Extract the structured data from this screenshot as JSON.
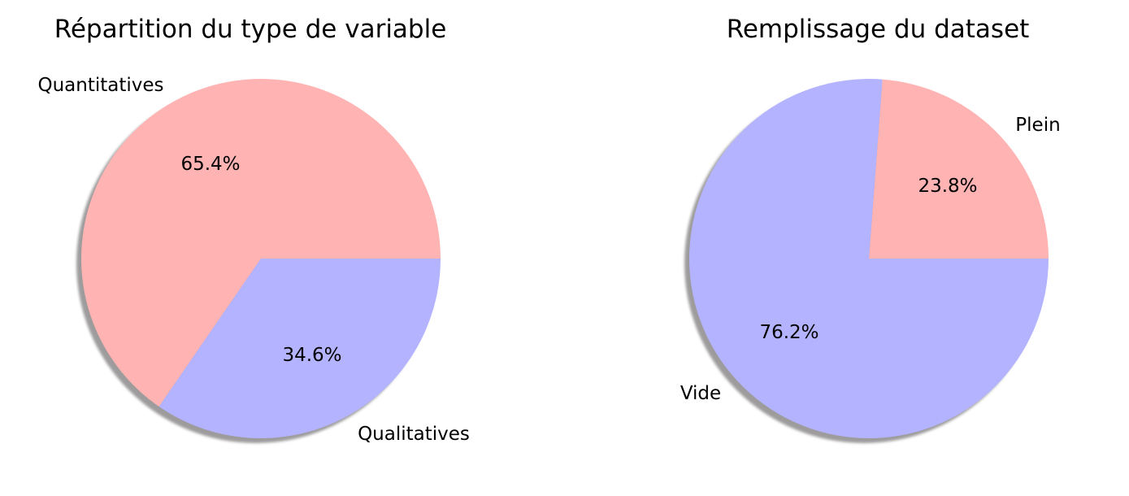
{
  "chart_data": [
    {
      "type": "pie",
      "title": "Répartition du type de variable",
      "labels": [
        "Quantitatives",
        "Qualitatives"
      ],
      "values": [
        65.4,
        34.6
      ],
      "percent_labels": [
        "65.4%",
        "34.6%"
      ],
      "colors": [
        "#ffb3b3",
        "#b3b3ff"
      ],
      "shadow": true
    },
    {
      "type": "pie",
      "title": "Remplissage du dataset",
      "labels": [
        "Plein",
        "Vide"
      ],
      "values": [
        23.8,
        76.2
      ],
      "percent_labels": [
        "23.8%",
        "76.2%"
      ],
      "colors": [
        "#ffb3b3",
        "#b3b3ff"
      ],
      "shadow": true
    }
  ]
}
